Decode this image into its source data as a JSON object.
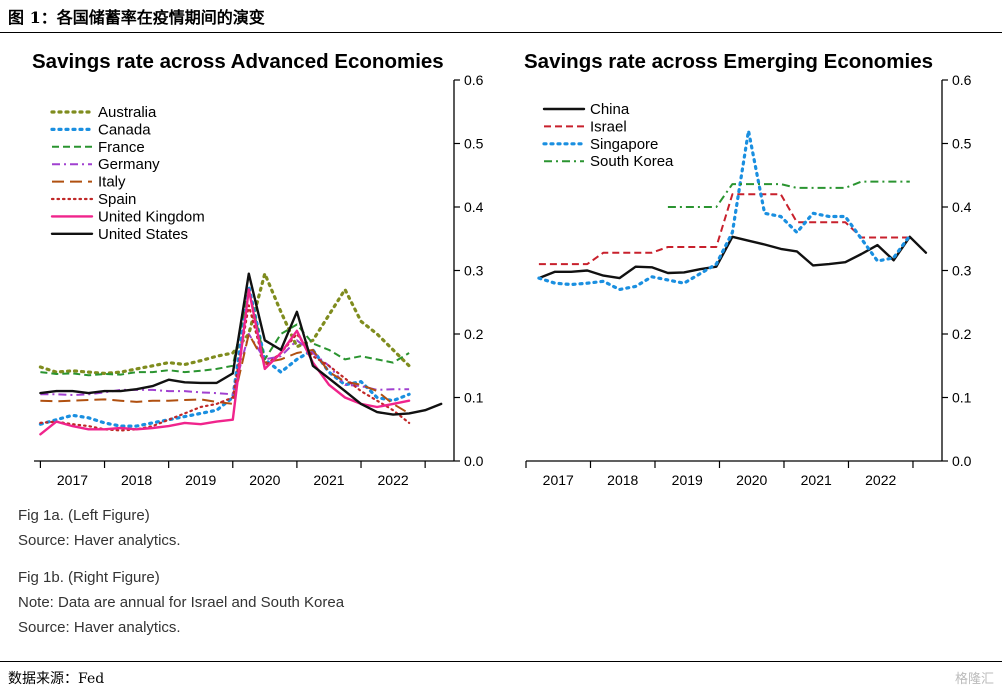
{
  "figure_title": "图 1：各国储蓄率在疫情期间的演变",
  "notes": {
    "left": [
      "Fig 1a. (Left Figure)",
      "Source: Haver analytics."
    ],
    "right": [
      "Fig 1b. (Right Figure)",
      "Note: Data are annual for Israel and South Korea",
      "Source: Haver analytics."
    ]
  },
  "footer": "数据来源：Fed",
  "watermark": "格隆汇",
  "chart_data": [
    {
      "type": "line",
      "title": "Savings rate across Advanced Economies",
      "xlabel": "",
      "ylabel": "",
      "x_ticks": [
        "2017",
        "2018",
        "2019",
        "2020",
        "2021",
        "2022"
      ],
      "x_tick_positions": [
        2017,
        2018,
        2019,
        2020,
        2021,
        2022
      ],
      "xlim": [
        2016.4,
        2022.95
      ],
      "ylim": [
        0.0,
        0.6
      ],
      "y_ticks": [
        "0.0",
        "0.1",
        "0.2",
        "0.3",
        "0.4",
        "0.5",
        "0.6"
      ],
      "y_axis_side": "right",
      "legend_position": "top-left",
      "series": [
        {
          "name": "Australia",
          "color": "#7f8c1e",
          "dash": "dotted",
          "x": [
            2016.5,
            2016.75,
            2017,
            2017.25,
            2017.5,
            2017.75,
            2018,
            2018.25,
            2018.5,
            2018.75,
            2019,
            2019.25,
            2019.5,
            2019.75,
            2020,
            2020.25,
            2020.5,
            2020.75,
            2021,
            2021.25,
            2021.5,
            2021.75,
            2022,
            2022.25
          ],
          "y": [
            0.148,
            0.14,
            0.142,
            0.14,
            0.138,
            0.14,
            0.145,
            0.15,
            0.155,
            0.152,
            0.158,
            0.165,
            0.17,
            0.2,
            0.295,
            0.235,
            0.18,
            0.19,
            0.23,
            0.27,
            0.22,
            0.2,
            0.175,
            0.15
          ]
        },
        {
          "name": "Canada",
          "color": "#1a8fe0",
          "dash": "dotted",
          "x": [
            2016.5,
            2016.75,
            2017,
            2017.25,
            2017.5,
            2017.75,
            2018,
            2018.25,
            2018.5,
            2018.75,
            2019,
            2019.25,
            2019.5,
            2019.75,
            2020,
            2020.25,
            2020.5,
            2020.75,
            2021,
            2021.25,
            2021.5,
            2021.75,
            2022,
            2022.25
          ],
          "y": [
            0.058,
            0.065,
            0.072,
            0.068,
            0.06,
            0.055,
            0.055,
            0.06,
            0.065,
            0.07,
            0.075,
            0.08,
            0.1,
            0.275,
            0.16,
            0.14,
            0.16,
            0.175,
            0.14,
            0.12,
            0.125,
            0.1,
            0.095,
            0.105
          ]
        },
        {
          "name": "France",
          "color": "#2a9430",
          "dash": "dashed",
          "x": [
            2016.5,
            2016.75,
            2017,
            2017.25,
            2017.5,
            2017.75,
            2018,
            2018.25,
            2018.5,
            2018.75,
            2019,
            2019.25,
            2019.5,
            2019.75,
            2020,
            2020.25,
            2020.5,
            2020.75,
            2021,
            2021.25,
            2021.5,
            2021.75,
            2022,
            2022.25
          ],
          "y": [
            0.14,
            0.137,
            0.138,
            0.135,
            0.137,
            0.136,
            0.14,
            0.14,
            0.143,
            0.14,
            0.142,
            0.145,
            0.15,
            0.27,
            0.16,
            0.2,
            0.215,
            0.185,
            0.175,
            0.16,
            0.165,
            0.16,
            0.155,
            0.17
          ]
        },
        {
          "name": "Germany",
          "color": "#a040d0",
          "dash": "dashdot",
          "x": [
            2016.5,
            2016.75,
            2017,
            2017.25,
            2017.5,
            2017.75,
            2018,
            2018.25,
            2018.5,
            2018.75,
            2019,
            2019.25,
            2019.5,
            2019.75,
            2020,
            2020.25,
            2020.5,
            2020.75,
            2021,
            2021.25,
            2021.5,
            2021.75,
            2022,
            2022.25
          ],
          "y": [
            0.105,
            0.105,
            0.104,
            0.105,
            0.108,
            0.112,
            0.112,
            0.112,
            0.11,
            0.11,
            0.108,
            0.107,
            0.105,
            0.2,
            0.16,
            0.165,
            0.19,
            0.17,
            0.15,
            0.12,
            0.118,
            0.112,
            0.113,
            0.113
          ]
        },
        {
          "name": "Italy",
          "color": "#b05010",
          "dash": "longdash",
          "x": [
            2016.5,
            2016.75,
            2017,
            2017.25,
            2017.5,
            2017.75,
            2018,
            2018.25,
            2018.5,
            2018.75,
            2019,
            2019.25,
            2019.5,
            2019.75,
            2020,
            2020.25,
            2020.5,
            2020.75,
            2021,
            2021.25,
            2021.5,
            2021.75,
            2022,
            2022.25
          ],
          "y": [
            0.095,
            0.094,
            0.095,
            0.096,
            0.097,
            0.095,
            0.093,
            0.095,
            0.095,
            0.096,
            0.097,
            0.093,
            0.09,
            0.2,
            0.155,
            0.16,
            0.17,
            0.175,
            0.14,
            0.125,
            0.12,
            0.11,
            0.09,
            0.075
          ]
        },
        {
          "name": "Spain",
          "color": "#c02828",
          "dash": "finedot",
          "x": [
            2016.5,
            2016.75,
            2017,
            2017.25,
            2017.5,
            2017.75,
            2018,
            2018.25,
            2018.5,
            2018.75,
            2019,
            2019.25,
            2019.5,
            2019.75,
            2020,
            2020.25,
            2020.5,
            2020.75,
            2021,
            2021.25,
            2021.5,
            2021.75,
            2022,
            2022.25
          ],
          "y": [
            0.06,
            0.062,
            0.058,
            0.055,
            0.05,
            0.048,
            0.05,
            0.055,
            0.065,
            0.075,
            0.085,
            0.09,
            0.1,
            0.245,
            0.15,
            0.17,
            0.2,
            0.165,
            0.15,
            0.13,
            0.11,
            0.095,
            0.08,
            0.06
          ]
        },
        {
          "name": "United Kingdom",
          "color": "#f0248c",
          "dash": "solid",
          "x": [
            2016.5,
            2016.75,
            2017,
            2017.25,
            2017.5,
            2017.75,
            2018,
            2018.25,
            2018.5,
            2018.75,
            2019,
            2019.25,
            2019.5,
            2019.75,
            2020,
            2020.25,
            2020.5,
            2020.75,
            2021,
            2021.25,
            2021.5,
            2021.75,
            2022,
            2022.25
          ],
          "y": [
            0.042,
            0.062,
            0.055,
            0.05,
            0.05,
            0.052,
            0.05,
            0.052,
            0.055,
            0.06,
            0.058,
            0.062,
            0.065,
            0.27,
            0.145,
            0.17,
            0.205,
            0.155,
            0.12,
            0.1,
            0.09,
            0.085,
            0.09,
            0.095
          ]
        },
        {
          "name": "United States",
          "color": "#111111",
          "dash": "solid",
          "x": [
            2016.5,
            2016.75,
            2017,
            2017.25,
            2017.5,
            2017.75,
            2018,
            2018.25,
            2018.5,
            2018.75,
            2019,
            2019.25,
            2019.5,
            2019.75,
            2020,
            2020.25,
            2020.5,
            2020.75,
            2021,
            2021.25,
            2021.5,
            2021.75,
            2022,
            2022.25,
            2022.5,
            2022.75
          ],
          "y": [
            0.107,
            0.11,
            0.11,
            0.107,
            0.11,
            0.11,
            0.113,
            0.118,
            0.128,
            0.124,
            0.123,
            0.123,
            0.138,
            0.295,
            0.19,
            0.175,
            0.235,
            0.15,
            0.13,
            0.11,
            0.09,
            0.077,
            0.073,
            0.075,
            0.08,
            0.09
          ]
        }
      ]
    },
    {
      "type": "line",
      "title": "Savings rate across Emerging Economies",
      "xlabel": "",
      "ylabel": "",
      "x_ticks": [
        "2017",
        "2018",
        "2019",
        "2020",
        "2021",
        "2022"
      ],
      "x_tick_positions": [
        2017,
        2018,
        2019,
        2020,
        2021,
        2022
      ],
      "xlim": [
        2016.5,
        2022.95
      ],
      "ylim": [
        0.0,
        0.6
      ],
      "y_ticks": [
        "0.0",
        "0.1",
        "0.2",
        "0.3",
        "0.4",
        "0.5",
        "0.6"
      ],
      "y_axis_side": "right",
      "legend_position": "top-left",
      "series": [
        {
          "name": "China",
          "color": "#111111",
          "dash": "solid",
          "x": [
            2016.7,
            2016.95,
            2017.2,
            2017.45,
            2017.7,
            2017.95,
            2018.2,
            2018.45,
            2018.7,
            2018.95,
            2019.2,
            2019.45,
            2019.7,
            2019.95,
            2020.2,
            2020.45,
            2020.7,
            2020.95,
            2021.2,
            2021.45,
            2021.7,
            2021.95,
            2022.2,
            2022.45,
            2022.7
          ],
          "y": [
            0.288,
            0.298,
            0.298,
            0.3,
            0.292,
            0.288,
            0.306,
            0.305,
            0.296,
            0.297,
            0.302,
            0.306,
            0.353,
            0.347,
            0.341,
            0.334,
            0.33,
            0.308,
            0.31,
            0.313,
            0.326,
            0.34,
            0.316,
            0.353,
            0.328
          ]
        },
        {
          "name": "Israel",
          "color": "#c8202c",
          "dash": "dashed",
          "x": [
            2016.7,
            2017.2,
            2017.45,
            2017.7,
            2017.95,
            2018.2,
            2018.45,
            2018.7,
            2018.95,
            2019.2,
            2019.45,
            2019.7,
            2019.95,
            2020.2,
            2020.45,
            2020.7,
            2020.95,
            2021.2,
            2021.45,
            2021.7,
            2021.95,
            2022.2,
            2022.45
          ],
          "y": [
            0.31,
            0.31,
            0.31,
            0.328,
            0.328,
            0.328,
            0.328,
            0.337,
            0.337,
            0.337,
            0.337,
            0.42,
            0.42,
            0.42,
            0.42,
            0.376,
            0.376,
            0.376,
            0.376,
            0.352,
            0.352,
            0.352,
            0.352
          ]
        },
        {
          "name": "Singapore",
          "color": "#1a8fe0",
          "dash": "dotted",
          "x": [
            2016.7,
            2016.95,
            2017.2,
            2017.45,
            2017.7,
            2017.95,
            2018.2,
            2018.45,
            2018.7,
            2018.95,
            2019.2,
            2019.45,
            2019.7,
            2019.95,
            2020.2,
            2020.45,
            2020.7,
            2020.95,
            2021.2,
            2021.45,
            2021.7,
            2021.95,
            2022.2,
            2022.45
          ],
          "y": [
            0.288,
            0.28,
            0.278,
            0.28,
            0.283,
            0.27,
            0.275,
            0.29,
            0.285,
            0.28,
            0.295,
            0.31,
            0.36,
            0.52,
            0.39,
            0.385,
            0.36,
            0.39,
            0.385,
            0.385,
            0.35,
            0.315,
            0.32,
            0.355
          ]
        },
        {
          "name": "South Korea",
          "color": "#2a9430",
          "dash": "dashdot",
          "x": [
            2018.7,
            2018.95,
            2019.2,
            2019.45,
            2019.7,
            2019.95,
            2020.2,
            2020.45,
            2020.7,
            2020.95,
            2021.2,
            2021.45,
            2021.7,
            2021.95,
            2022.2,
            2022.45
          ],
          "y": [
            0.4,
            0.4,
            0.4,
            0.4,
            0.436,
            0.436,
            0.436,
            0.436,
            0.43,
            0.43,
            0.43,
            0.43,
            0.44,
            0.44,
            0.44,
            0.44
          ]
        }
      ]
    }
  ]
}
